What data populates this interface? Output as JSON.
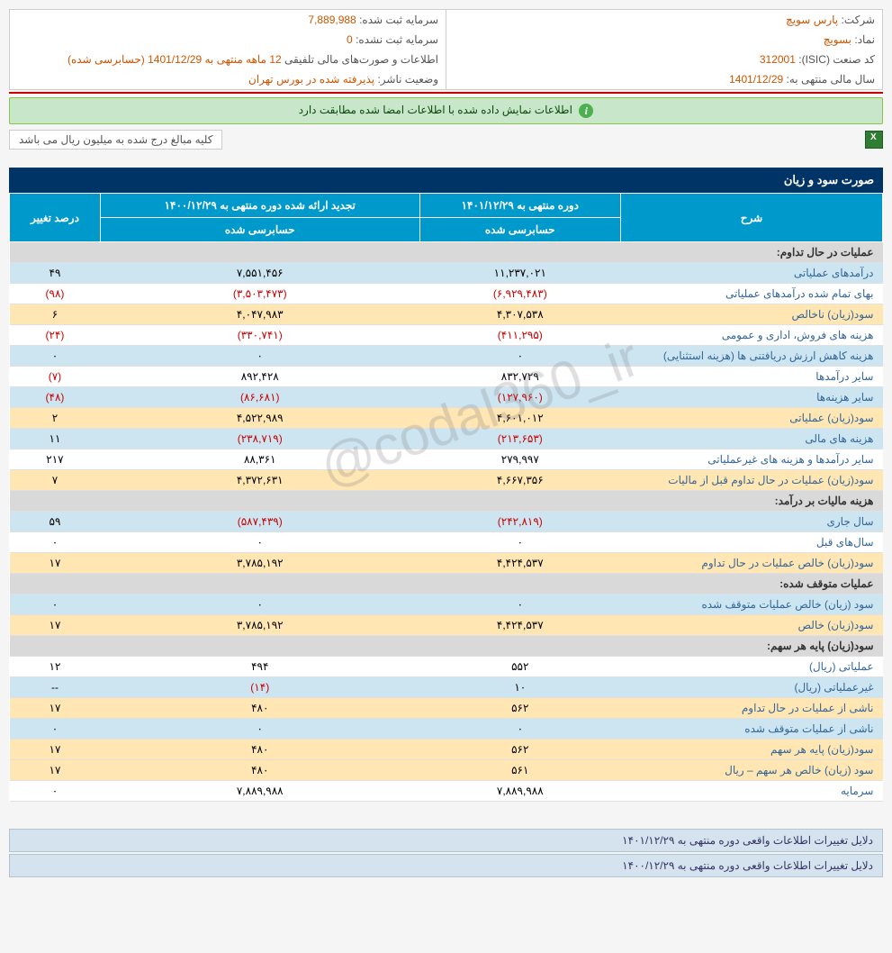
{
  "watermark": "@codal360_ir",
  "info": {
    "company_label": "شرکت:",
    "company_value": "پارس سویچ",
    "capital_reg_label": "سرمایه ثبت شده:",
    "capital_reg_value": "7,889,988",
    "symbol_label": "نماد:",
    "symbol_value": "بسویچ",
    "capital_unreg_label": "سرمایه ثبت نشده:",
    "capital_unreg_value": "0",
    "isic_label": "کد صنعت (ISIC):",
    "isic_value": "312001",
    "report_label": "اطلاعات و صورت‌های مالی تلفیقی",
    "report_value": "12 ماهه منتهی به 1401/12/29 (حسابرسی شده)",
    "fiscal_label": "سال مالی منتهی به:",
    "fiscal_value": "1401/12/29",
    "status_label": "وضعیت ناشر:",
    "status_value": "پذیرفته شده در بورس تهران"
  },
  "alert": "اطلاعات نمایش داده شده با اطلاعات امضا شده مطابقت دارد",
  "note": "کلیه مبالغ درج شده به میلیون ریال می باشد",
  "table_title": "صورت سود و زیان",
  "headers": {
    "desc": "شرح",
    "period1": "دوره منتهی به ۱۴۰۱/۱۲/۲۹",
    "period2": "تجدید ارائه شده دوره منتهی به ۱۴۰۰/۱۲/۲۹",
    "change": "درصد تغییر",
    "audited": "حسابرسی شده"
  },
  "rows": [
    {
      "type": "header",
      "desc": "عملیات در حال تداوم:"
    },
    {
      "type": "blue",
      "desc": "درآمدهای عملیاتی",
      "v1": "۱۱,۲۳۷,۰۲۱",
      "v2": "۷,۵۵۱,۴۵۶",
      "pct": "۴۹"
    },
    {
      "type": "white",
      "desc": "بهای تمام شده درآمدهای عملیاتی",
      "v1": "(۶,۹۲۹,۴۸۳)",
      "v1neg": true,
      "v2": "(۳,۵۰۳,۴۷۳)",
      "v2neg": true,
      "pct": "(۹۸)",
      "pctneg": true
    },
    {
      "type": "yellow",
      "desc": "سود(زیان) ناخالص",
      "v1": "۴,۳۰۷,۵۳۸",
      "v2": "۴,۰۴۷,۹۸۳",
      "pct": "۶"
    },
    {
      "type": "white",
      "desc": "هزینه های فروش، اداری و عمومی",
      "v1": "(۴۱۱,۲۹۵)",
      "v1neg": true,
      "v2": "(۳۳۰,۷۴۱)",
      "v2neg": true,
      "pct": "(۲۴)",
      "pctneg": true
    },
    {
      "type": "blue",
      "desc": "هزینه کاهش ارزش دریافتنی ها (هزینه استثنایی)",
      "v1": "۰",
      "v2": "۰",
      "pct": "۰"
    },
    {
      "type": "white",
      "desc": "سایر درآمدها",
      "v1": "۸۳۲,۷۲۹",
      "v2": "۸۹۲,۴۲۸",
      "pct": "(۷)",
      "pctneg": true
    },
    {
      "type": "blue",
      "desc": "سایر هزینه‌ها",
      "v1": "(۱۲۷,۹۶۰)",
      "v1neg": true,
      "v2": "(۸۶,۶۸۱)",
      "v2neg": true,
      "pct": "(۴۸)",
      "pctneg": true
    },
    {
      "type": "yellow",
      "desc": "سود(زیان) عملیاتی",
      "v1": "۴,۶۰۱,۰۱۲",
      "v2": "۴,۵۲۲,۹۸۹",
      "pct": "۲"
    },
    {
      "type": "blue",
      "desc": "هزینه های مالی",
      "v1": "(۲۱۳,۶۵۳)",
      "v1neg": true,
      "v2": "(۲۳۸,۷۱۹)",
      "v2neg": true,
      "pct": "۱۱"
    },
    {
      "type": "white",
      "desc": "سایر درآمدها و هزینه های غیرعملیاتی",
      "v1": "۲۷۹,۹۹۷",
      "v2": "۸۸,۳۶۱",
      "pct": "۲۱۷"
    },
    {
      "type": "yellow",
      "desc": "سود(زیان) عملیات در حال تداوم قبل از مالیات",
      "v1": "۴,۶۶۷,۳۵۶",
      "v2": "۴,۳۷۲,۶۳۱",
      "pct": "۷"
    },
    {
      "type": "header",
      "desc": "هزینه مالیات بر درآمد:"
    },
    {
      "type": "blue",
      "desc": "سال جاری",
      "v1": "(۲۴۲,۸۱۹)",
      "v1neg": true,
      "v2": "(۵۸۷,۴۳۹)",
      "v2neg": true,
      "pct": "۵۹"
    },
    {
      "type": "white",
      "desc": "سال‌های قبل",
      "v1": "۰",
      "v2": "۰",
      "pct": "۰"
    },
    {
      "type": "yellow",
      "desc": "سود(زیان) خالص عملیات در حال تداوم",
      "v1": "۴,۴۲۴,۵۳۷",
      "v2": "۳,۷۸۵,۱۹۲",
      "pct": "۱۷"
    },
    {
      "type": "header",
      "desc": "عملیات متوقف شده:"
    },
    {
      "type": "blue",
      "desc": "سود (زیان) خالص عملیات متوقف شده",
      "v1": "۰",
      "v2": "۰",
      "pct": "۰"
    },
    {
      "type": "yellow",
      "desc": "سود(زیان) خالص",
      "v1": "۴,۴۲۴,۵۳۷",
      "v2": "۳,۷۸۵,۱۹۲",
      "pct": "۱۷"
    },
    {
      "type": "header",
      "desc": "سود(زیان) پایه هر سهم:"
    },
    {
      "type": "white",
      "desc": "عملیاتی (ریال)",
      "v1": "۵۵۲",
      "v2": "۴۹۴",
      "pct": "۱۲"
    },
    {
      "type": "blue",
      "desc": "غیرعملیاتی (ریال)",
      "v1": "۱۰",
      "v2": "(۱۴)",
      "v2neg": true,
      "pct": "--"
    },
    {
      "type": "yellow",
      "desc": "ناشی از عملیات در حال تداوم",
      "v1": "۵۶۲",
      "v2": "۴۸۰",
      "pct": "۱۷"
    },
    {
      "type": "blue",
      "desc": "ناشی از عملیات متوقف شده",
      "v1": "۰",
      "v2": "۰",
      "pct": "۰"
    },
    {
      "type": "yellow",
      "desc": "سود(زیان) پایه هر سهم",
      "v1": "۵۶۲",
      "v2": "۴۸۰",
      "pct": "۱۷"
    },
    {
      "type": "yellow",
      "desc": "سود (زیان) خالص هر سهم – ریال",
      "v1": "۵۶۱",
      "v2": "۴۸۰",
      "pct": "۱۷"
    },
    {
      "type": "white",
      "desc": "سرمایه",
      "v1": "۷,۸۸۹,۹۸۸",
      "v2": "۷,۸۸۹,۹۸۸",
      "pct": "۰"
    }
  ],
  "footers": [
    "دلایل تغییرات اطلاعات واقعی دوره منتهی به ۱۴۰۱/۱۲/۲۹",
    "دلایل تغییرات اطلاعات واقعی دوره منتهی به ۱۴۰۰/۱۲/۲۹"
  ]
}
